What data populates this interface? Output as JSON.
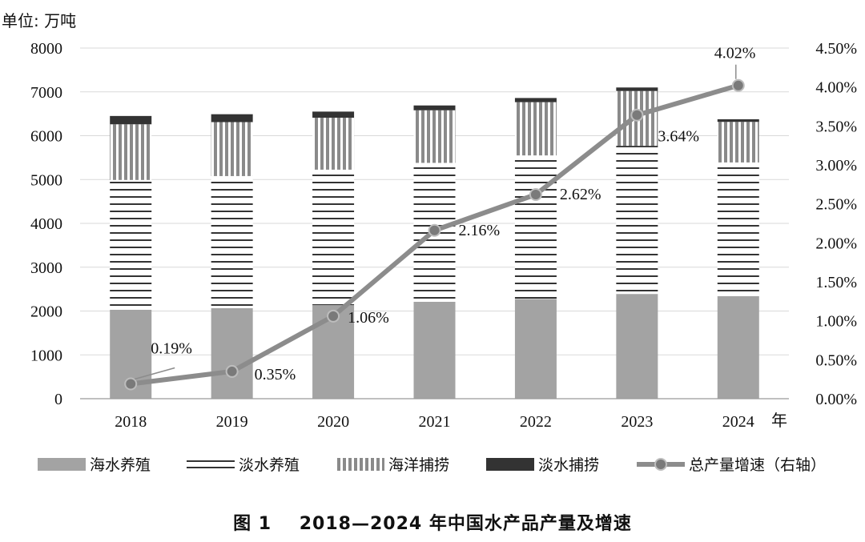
{
  "chart_data": {
    "type": "bar",
    "stacked": true,
    "unit_label": "单位: 万吨",
    "x_axis_suffix": "年",
    "categories": [
      "2018",
      "2019",
      "2020",
      "2021",
      "2022",
      "2023",
      "2024"
    ],
    "ylim_left": [
      0,
      8000
    ],
    "yticks_left": [
      "0",
      "1000",
      "2000",
      "3000",
      "4000",
      "5000",
      "6000",
      "7000",
      "8000"
    ],
    "ylim_right": [
      0,
      4.5
    ],
    "yticks_right": [
      "0.00%",
      "0.50%",
      "1.00%",
      "1.50%",
      "2.00%",
      "2.50%",
      "3.00%",
      "3.50%",
      "4.00%",
      "4.50%"
    ],
    "grid": "horizontal",
    "legend_position": "bottom",
    "series": [
      {
        "name": "海水养殖",
        "kind": "bar",
        "pattern": "solid-gray",
        "color": "#a3a3a3",
        "values": [
          2030,
          2065,
          2135,
          2210,
          2275,
          2390,
          2340
        ]
      },
      {
        "name": "淡水养殖",
        "kind": "bar",
        "pattern": "horizontal-stripes",
        "color": "#333333",
        "values": [
          2960,
          3015,
          3090,
          3170,
          3275,
          3380,
          3050
        ]
      },
      {
        "name": "海洋捕捞",
        "kind": "bar",
        "pattern": "vertical-stripes",
        "color": "#8a8a8a",
        "values": [
          1270,
          1230,
          1185,
          1200,
          1215,
          1250,
          925
        ]
      },
      {
        "name": "淡水捕捞",
        "kind": "bar",
        "pattern": "solid-dark",
        "color": "#333333",
        "values": [
          190,
          180,
          140,
          110,
          95,
          80,
          60
        ]
      },
      {
        "name": "总产量增速（右轴）",
        "kind": "line",
        "axis": "right",
        "color": "#8c8c8c",
        "values": [
          0.19,
          0.35,
          1.06,
          2.16,
          2.62,
          3.64,
          4.02
        ],
        "labels": [
          "0.19%",
          "0.35%",
          "1.06%",
          "2.16%",
          "2.62%",
          "3.64%",
          "4.02%"
        ]
      }
    ]
  },
  "caption": "图 1    2018—2024 年中国水产品产量及增速"
}
